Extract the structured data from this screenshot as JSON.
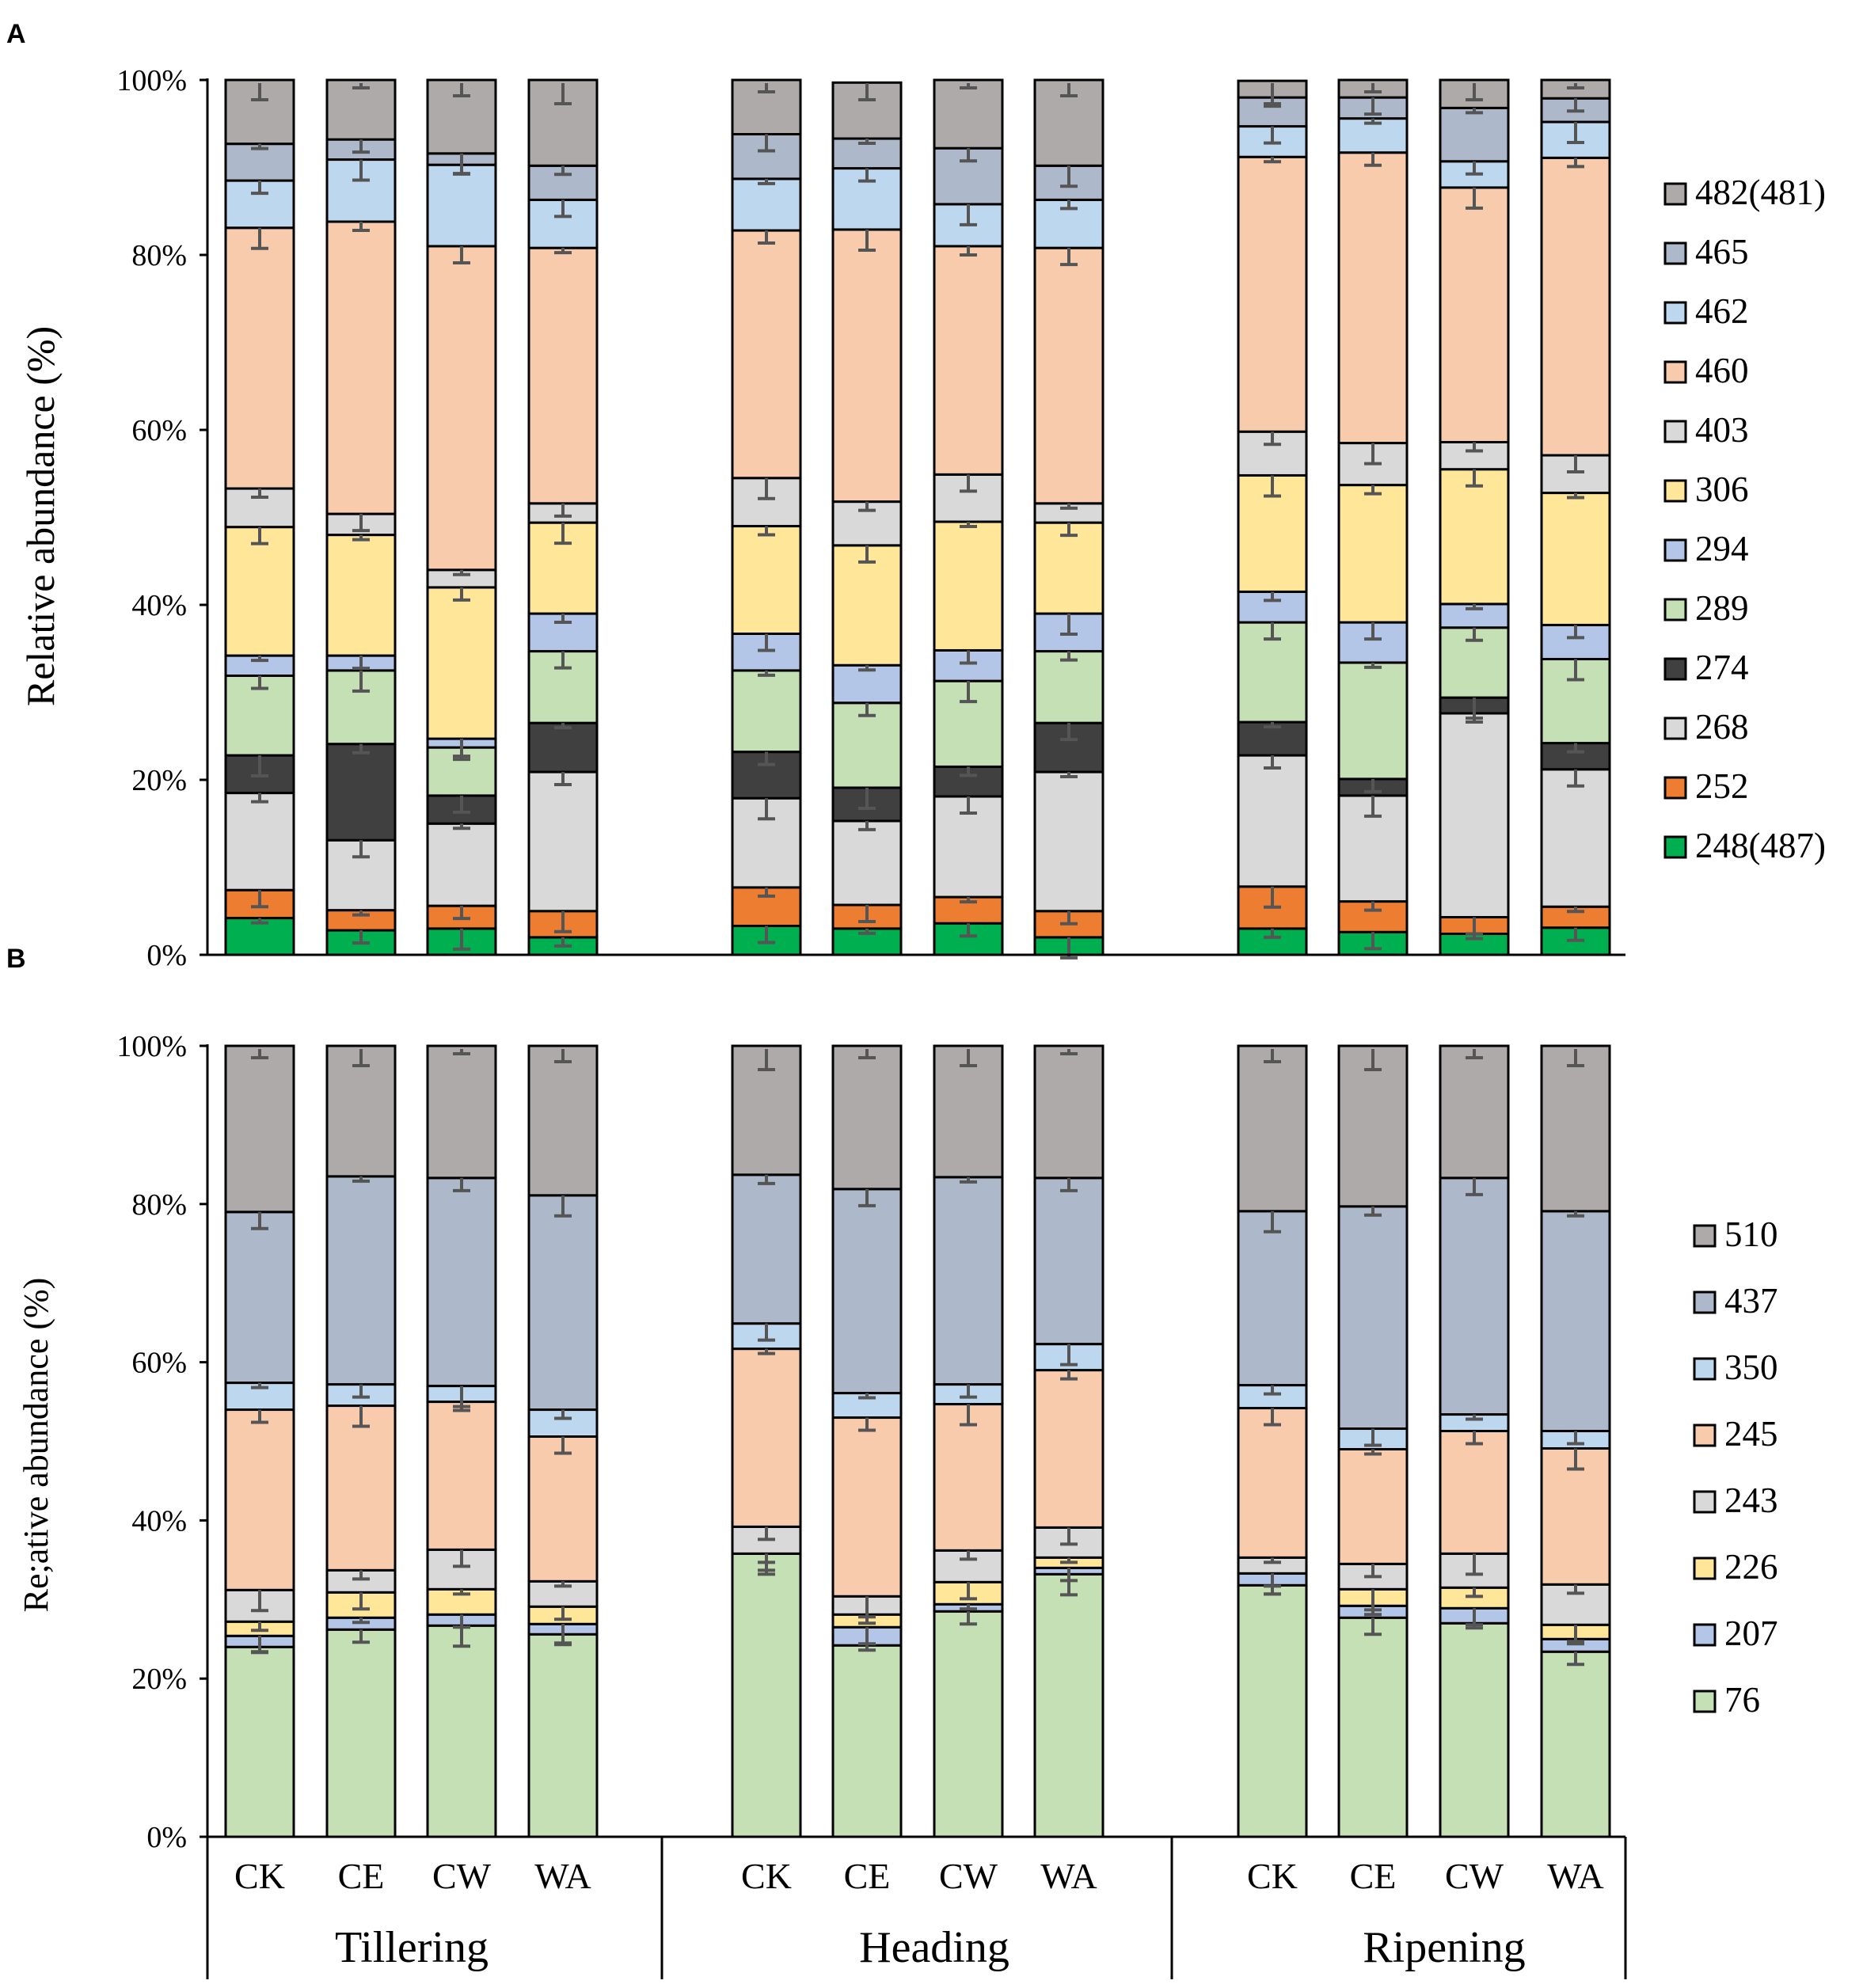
{
  "panels": {
    "a": "A",
    "b": "B"
  },
  "groups": [
    "Tillering",
    "Heading",
    "Ripening"
  ],
  "treatments": [
    "CK",
    "CE",
    "CW",
    "WA"
  ],
  "colors": {
    "482(481)": "#aeaaaa",
    "465": "#adb9ca",
    "462": "#bdd7ee",
    "460": "#f8cbad",
    "403": "#d9d9d9",
    "306": "#ffe699",
    "294": "#b4c6e7",
    "289": "#c5e0b4",
    "274": "#404040",
    "268": "#d9d9d9",
    "252": "#ed7d31",
    "248(487)": "#00b050",
    "510": "#aeaaaa",
    "437": "#adb9ca",
    "350": "#bdd7ee",
    "245": "#f8cbad",
    "243": "#d9d9d9",
    "226": "#ffe699",
    "207": "#b4c6e7",
    "76": "#c5e0b4"
  },
  "chart_data": [
    {
      "type": "bar",
      "stacked": true,
      "panel": "A",
      "ylabel": "Relative abundance (%)",
      "ylim": [
        0,
        100
      ],
      "yticks": [
        "0%",
        "20%",
        "40%",
        "60%",
        "80%",
        "100%"
      ],
      "categories": [
        "CK",
        "CE",
        "CW",
        "WA",
        "CK",
        "CE",
        "CW",
        "WA",
        "CK",
        "CE",
        "CW",
        "WA"
      ],
      "legend": [
        "482(481)",
        "465",
        "462",
        "460",
        "403",
        "306",
        "294",
        "289",
        "274",
        "268",
        "252",
        "248(487)"
      ],
      "series": [
        {
          "name": "248(487)",
          "values": [
            4.2,
            2.8,
            3.0,
            2.0,
            3.3,
            3.0,
            3.6,
            2.0,
            3.0,
            2.6,
            2.4,
            3.1
          ]
        },
        {
          "name": "252",
          "values": [
            3.2,
            2.3,
            2.6,
            3.0,
            4.4,
            2.7,
            3.0,
            3.0,
            4.8,
            3.5,
            1.9,
            2.4
          ]
        },
        {
          "name": "268",
          "values": [
            11.1,
            8.0,
            9.4,
            15.9,
            10.2,
            9.6,
            11.5,
            15.9,
            15.0,
            12.1,
            23.3,
            15.7
          ]
        },
        {
          "name": "274",
          "values": [
            4.3,
            11.0,
            3.2,
            5.6,
            5.3,
            3.8,
            3.4,
            5.6,
            3.8,
            1.9,
            1.8,
            3.0
          ]
        },
        {
          "name": "289",
          "values": [
            9.1,
            8.4,
            5.5,
            8.2,
            9.3,
            9.7,
            9.8,
            8.2,
            11.4,
            13.3,
            8.0,
            9.6
          ]
        },
        {
          "name": "294",
          "values": [
            2.3,
            1.7,
            1.0,
            4.3,
            4.2,
            4.3,
            3.5,
            4.3,
            3.5,
            4.6,
            2.7,
            3.9
          ]
        },
        {
          "name": "306",
          "values": [
            14.7,
            13.8,
            17.3,
            10.4,
            12.3,
            13.7,
            14.7,
            10.4,
            13.3,
            15.7,
            15.4,
            15.1
          ]
        },
        {
          "name": "403",
          "values": [
            4.4,
            2.4,
            2.0,
            2.2,
            5.5,
            5.0,
            5.4,
            2.2,
            5.0,
            4.8,
            3.1,
            4.3
          ]
        },
        {
          "name": "460",
          "values": [
            29.8,
            33.4,
            37.0,
            29.2,
            28.3,
            31.1,
            26.1,
            29.2,
            31.4,
            33.2,
            29.1,
            34.0
          ]
        },
        {
          "name": "462",
          "values": [
            5.4,
            7.1,
            9.3,
            5.5,
            5.9,
            7.0,
            4.8,
            5.5,
            3.5,
            3.9,
            3.0,
            4.1
          ]
        },
        {
          "name": "465",
          "values": [
            4.2,
            2.3,
            1.3,
            3.9,
            5.1,
            3.4,
            6.4,
            3.9,
            3.3,
            2.4,
            6.1,
            2.7
          ]
        },
        {
          "name": "482(481)",
          "values": [
            7.3,
            6.8,
            8.4,
            9.8,
            6.2,
            6.4,
            7.8,
            9.8,
            1.9,
            2.0,
            3.2,
            2.1
          ]
        }
      ]
    },
    {
      "type": "bar",
      "stacked": true,
      "panel": "B",
      "ylabel": "Re;ative abundance (%)",
      "ylim": [
        0,
        100
      ],
      "yticks": [
        "0%",
        "20%",
        "40%",
        "60%",
        "80%",
        "100%"
      ],
      "categories": [
        "CK",
        "CE",
        "CW",
        "WA",
        "CK",
        "CE",
        "CW",
        "WA",
        "CK",
        "CE",
        "CW",
        "WA"
      ],
      "legend": [
        "510",
        "437",
        "350",
        "245",
        "243",
        "226",
        "207",
        "76"
      ],
      "series": [
        {
          "name": "76",
          "values": [
            24.0,
            26.2,
            26.7,
            25.6,
            35.8,
            24.2,
            28.5,
            33.2,
            31.8,
            27.7,
            27.0,
            23.4
          ]
        },
        {
          "name": "207",
          "values": [
            1.4,
            1.5,
            1.4,
            1.3,
            0.0,
            2.3,
            0.9,
            0.8,
            1.5,
            1.5,
            1.9,
            1.6
          ]
        },
        {
          "name": "226",
          "values": [
            1.8,
            3.2,
            3.2,
            2.2,
            0.0,
            1.6,
            2.8,
            1.3,
            0.0,
            2.1,
            2.6,
            1.8
          ]
        },
        {
          "name": "243",
          "values": [
            4.0,
            2.8,
            5.0,
            3.2,
            3.4,
            2.3,
            4.0,
            3.8,
            2.0,
            3.2,
            4.3,
            5.1
          ]
        },
        {
          "name": "245",
          "values": [
            22.8,
            20.8,
            18.7,
            18.3,
            22.5,
            22.6,
            18.5,
            19.9,
            18.9,
            14.5,
            15.5,
            17.2
          ]
        },
        {
          "name": "350",
          "values": [
            3.4,
            2.7,
            2.0,
            3.4,
            3.2,
            3.1,
            2.5,
            3.3,
            2.9,
            2.6,
            2.1,
            2.2
          ]
        },
        {
          "name": "437",
          "values": [
            21.6,
            26.3,
            26.3,
            27.1,
            18.8,
            25.8,
            26.2,
            21.0,
            22.0,
            28.1,
            29.9,
            27.8
          ]
        },
        {
          "name": "510",
          "values": [
            21.0,
            16.5,
            16.7,
            18.9,
            16.3,
            18.1,
            16.6,
            16.7,
            20.9,
            20.3,
            16.7,
            20.9
          ]
        }
      ]
    }
  ]
}
